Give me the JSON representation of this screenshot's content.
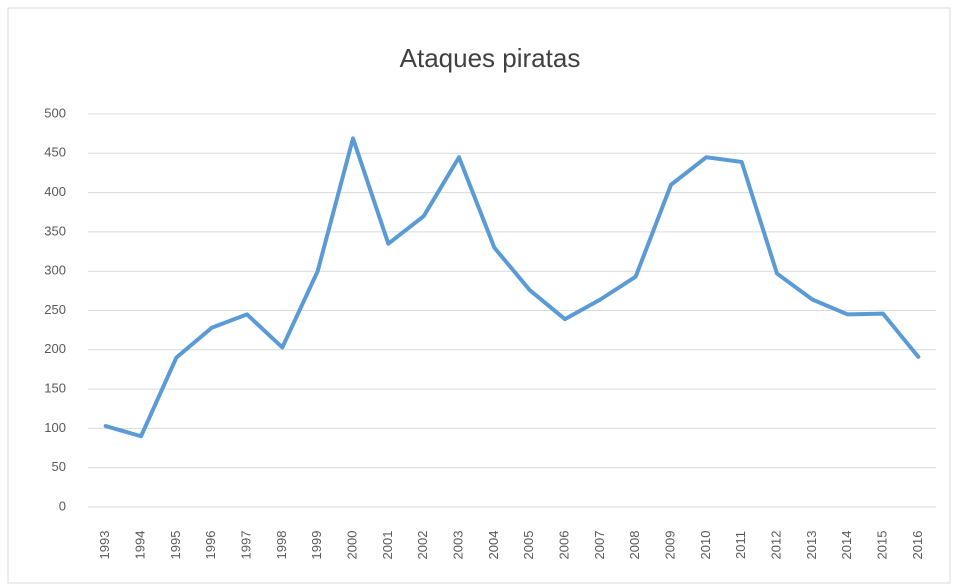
{
  "chart_data": {
    "type": "line",
    "title": "Ataques piratas",
    "categories": [
      "1993",
      "1994",
      "1995",
      "1996",
      "1997",
      "1998",
      "1999",
      "2000",
      "2001",
      "2002",
      "2003",
      "2004",
      "2005",
      "2006",
      "2007",
      "2008",
      "2009",
      "2010",
      "2011",
      "2012",
      "2013",
      "2014",
      "2015",
      "2016"
    ],
    "series": [
      {
        "name": "Ataques piratas",
        "color": "#5b9bd5",
        "values": [
          103,
          90,
          190,
          228,
          245,
          203,
          300,
          469,
          335,
          370,
          445,
          330,
          276,
          239,
          264,
          293,
          410,
          445,
          439,
          297,
          264,
          245,
          246,
          191
        ]
      }
    ],
    "ylim": [
      0,
      500
    ],
    "yticks": [
      0,
      50,
      100,
      150,
      200,
      250,
      300,
      350,
      400,
      450,
      500
    ],
    "grid": true
  }
}
